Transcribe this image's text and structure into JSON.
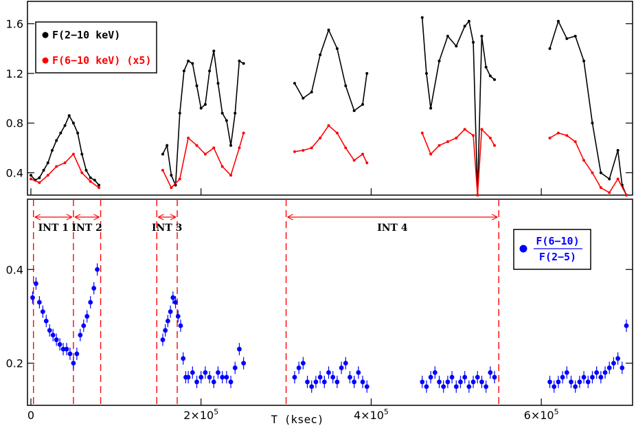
{
  "colors": {
    "total": "#000000",
    "hard": "#ff0000",
    "ratio": "#0000ff",
    "markers": "#ff0000"
  },
  "chart_data": [
    {
      "type": "line",
      "panel": "top",
      "ylim": [
        0.22,
        1.78
      ],
      "xlim": [
        0,
        700000
      ],
      "yticks": [
        0.4,
        0.8,
        1.2,
        1.6
      ],
      "ytick_labels": [
        "0.4",
        "0.8",
        "1.2",
        "1.6"
      ],
      "legend_position": "top-left",
      "series": [
        {
          "name": "F(2−10 keV)",
          "color": "#000000",
          "segments": [
            {
              "x": [
                0,
                5000,
                10000,
                15000,
                20000,
                25000,
                30000,
                35000,
                40000,
                45000,
                50000,
                55000,
                60000,
                65000,
                70000,
                75000,
                80000
              ],
              "y": [
                0.38,
                0.34,
                0.36,
                0.42,
                0.48,
                0.58,
                0.66,
                0.72,
                0.78,
                0.86,
                0.8,
                0.72,
                0.55,
                0.42,
                0.36,
                0.34,
                0.3
              ]
            },
            {
              "x": [
                155000,
                160000,
                165000,
                170000,
                175000,
                180000,
                185000,
                190000,
                195000,
                200000,
                205000,
                210000,
                215000,
                220000,
                225000,
                230000,
                235000,
                240000,
                245000,
                250000
              ],
              "y": [
                0.55,
                0.62,
                0.38,
                0.3,
                0.88,
                1.22,
                1.3,
                1.28,
                1.1,
                0.92,
                0.95,
                1.22,
                1.38,
                1.12,
                0.88,
                0.82,
                0.62,
                0.88,
                1.3,
                1.28
              ]
            },
            {
              "x": [
                310000,
                320000,
                330000,
                340000,
                350000,
                360000,
                370000,
                380000,
                390000,
                395000
              ],
              "y": [
                1.12,
                1.0,
                1.05,
                1.35,
                1.55,
                1.4,
                1.1,
                0.9,
                0.95,
                1.2
              ]
            },
            {
              "x": [
                460000,
                465000,
                470000,
                480000,
                490000,
                500000,
                510000,
                515000,
                520000,
                525000,
                530000,
                535000,
                540000,
                545000
              ],
              "y": [
                1.65,
                1.2,
                0.92,
                1.3,
                1.5,
                1.42,
                1.58,
                1.62,
                1.45,
                0.22,
                1.5,
                1.25,
                1.18,
                1.15
              ]
            },
            {
              "x": [
                610000,
                620000,
                630000,
                640000,
                650000,
                660000,
                670000,
                680000,
                690000,
                695000,
                700000
              ],
              "y": [
                1.4,
                1.62,
                1.48,
                1.5,
                1.3,
                0.8,
                0.4,
                0.35,
                0.58,
                0.3,
                0.22
              ]
            }
          ]
        },
        {
          "name": "F(6−10 keV) (x5)",
          "color": "#ff0000",
          "segments": [
            {
              "x": [
                0,
                10000,
                20000,
                30000,
                40000,
                50000,
                60000,
                70000,
                80000
              ],
              "y": [
                0.35,
                0.32,
                0.38,
                0.45,
                0.48,
                0.55,
                0.4,
                0.33,
                0.28
              ]
            },
            {
              "x": [
                155000,
                165000,
                175000,
                185000,
                195000,
                205000,
                215000,
                225000,
                235000,
                245000,
                250000
              ],
              "y": [
                0.42,
                0.28,
                0.35,
                0.68,
                0.62,
                0.55,
                0.6,
                0.45,
                0.38,
                0.6,
                0.72
              ]
            },
            {
              "x": [
                310000,
                320000,
                330000,
                340000,
                350000,
                360000,
                370000,
                380000,
                390000,
                395000
              ],
              "y": [
                0.57,
                0.58,
                0.6,
                0.68,
                0.78,
                0.72,
                0.6,
                0.5,
                0.55,
                0.48
              ]
            },
            {
              "x": [
                460000,
                470000,
                480000,
                490000,
                500000,
                510000,
                520000,
                525000,
                530000,
                540000,
                545000
              ],
              "y": [
                0.72,
                0.55,
                0.62,
                0.65,
                0.68,
                0.75,
                0.7,
                0.22,
                0.75,
                0.68,
                0.62
              ]
            },
            {
              "x": [
                610000,
                620000,
                630000,
                640000,
                650000,
                660000,
                670000,
                680000,
                690000,
                700000
              ],
              "y": [
                0.68,
                0.72,
                0.7,
                0.65,
                0.5,
                0.4,
                0.28,
                0.24,
                0.35,
                0.22
              ]
            }
          ]
        }
      ]
    },
    {
      "type": "scatter",
      "panel": "bottom",
      "xlabel": "T (ksec)",
      "ylim": [
        0.11,
        0.55
      ],
      "xlim": [
        0,
        700000
      ],
      "yticks": [
        0.2,
        0.4
      ],
      "ytick_labels": [
        "0.2",
        "0.4"
      ],
      "xticks": [
        0,
        200000,
        400000,
        600000
      ],
      "xtick_labels": [
        "0",
        "2×10",
        "4×10",
        "6×10"
      ],
      "xtick_exponent": "5",
      "legend_position": "right",
      "legend": {
        "numerator": "F(6−10)",
        "denominator": "F(2−5)"
      },
      "series": [
        {
          "name": "F(6−10)/F(2−5)",
          "color": "#0000ff",
          "x": [
            2000,
            6000,
            10000,
            14000,
            18000,
            22000,
            26000,
            30000,
            34000,
            38000,
            42000,
            46000,
            50000,
            54000,
            58000,
            62000,
            66000,
            70000,
            74000,
            78000,
            155000,
            158000,
            161000,
            164000,
            167000,
            170000,
            173000,
            176000,
            179000,
            182000,
            185000,
            190000,
            195000,
            200000,
            205000,
            210000,
            215000,
            220000,
            225000,
            230000,
            235000,
            240000,
            245000,
            250000,
            310000,
            315000,
            320000,
            325000,
            330000,
            335000,
            340000,
            345000,
            350000,
            355000,
            360000,
            365000,
            370000,
            375000,
            380000,
            385000,
            390000,
            395000,
            460000,
            465000,
            470000,
            475000,
            480000,
            485000,
            490000,
            495000,
            500000,
            505000,
            510000,
            515000,
            520000,
            525000,
            530000,
            535000,
            540000,
            545000,
            610000,
            615000,
            620000,
            625000,
            630000,
            635000,
            640000,
            645000,
            650000,
            655000,
            660000,
            665000,
            670000,
            675000,
            680000,
            685000,
            690000,
            695000,
            700000
          ],
          "y": [
            0.34,
            0.37,
            0.33,
            0.31,
            0.29,
            0.27,
            0.26,
            0.25,
            0.24,
            0.23,
            0.23,
            0.22,
            0.2,
            0.22,
            0.26,
            0.28,
            0.3,
            0.33,
            0.36,
            0.4,
            0.25,
            0.27,
            0.29,
            0.31,
            0.34,
            0.33,
            0.3,
            0.28,
            0.21,
            0.17,
            0.17,
            0.18,
            0.16,
            0.17,
            0.18,
            0.17,
            0.16,
            0.18,
            0.17,
            0.17,
            0.16,
            0.19,
            0.23,
            0.2,
            0.17,
            0.19,
            0.2,
            0.16,
            0.15,
            0.16,
            0.17,
            0.16,
            0.18,
            0.17,
            0.16,
            0.19,
            0.2,
            0.17,
            0.16,
            0.18,
            0.16,
            0.15,
            0.16,
            0.15,
            0.17,
            0.18,
            0.16,
            0.15,
            0.16,
            0.17,
            0.15,
            0.16,
            0.17,
            0.15,
            0.16,
            0.17,
            0.16,
            0.15,
            0.18,
            0.17,
            0.16,
            0.15,
            0.16,
            0.17,
            0.18,
            0.16,
            0.15,
            0.16,
            0.17,
            0.16,
            0.17,
            0.18,
            0.17,
            0.18,
            0.19,
            0.2,
            0.21,
            0.19,
            0.28
          ]
        }
      ],
      "intervals": [
        {
          "label": "INT 1",
          "start": 3000,
          "end": 50000
        },
        {
          "label": "INT 2",
          "start": 50000,
          "end": 82000
        },
        {
          "label": "INT 3",
          "start": 148000,
          "end": 172000
        },
        {
          "label": "INT 4",
          "start": 300000,
          "end": 550000
        }
      ]
    }
  ]
}
